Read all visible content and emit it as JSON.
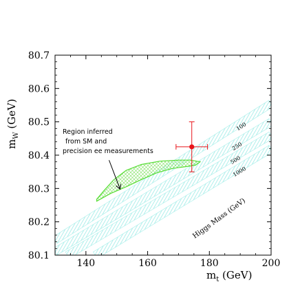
{
  "chart_data": {
    "type": "scatter",
    "title": "",
    "xlabel": "m_t (GeV)",
    "xlabel_main": "m",
    "xlabel_sub": "t",
    "xlabel_unit": " (GeV)",
    "ylabel": "m_W (GeV)",
    "ylabel_main": "m",
    "ylabel_sub": "W",
    "ylabel_unit": " (GeV)",
    "xlim": [
      130,
      200
    ],
    "ylim": [
      80.1,
      80.7
    ],
    "xticks": [
      140,
      160,
      180,
      200
    ],
    "yticks": [
      80.1,
      80.2,
      80.3,
      80.4,
      80.5,
      80.6,
      80.7
    ],
    "xtick_labels": [
      "140",
      "160",
      "180",
      "200"
    ],
    "ytick_labels": [
      "80.1",
      "80.2",
      "80.3",
      "80.4",
      "80.5",
      "80.6",
      "80.7"
    ],
    "grid": false,
    "measurement": {
      "mt": 174.3,
      "mw": 80.425,
      "mt_err": 5.1,
      "mw_err_up": 0.075,
      "mw_err_down": 0.075,
      "color": "#e8141a"
    },
    "region": {
      "label_lines": [
        "Region inferred",
        "from SM and",
        "precision ee measurements"
      ],
      "color": "#55dd33",
      "points": [
        [
          143.5,
          80.262
        ],
        [
          148,
          80.285
        ],
        [
          153,
          80.305
        ],
        [
          158,
          80.327
        ],
        [
          163,
          80.347
        ],
        [
          168,
          80.36
        ],
        [
          172,
          80.365
        ],
        [
          175.5,
          80.37
        ],
        [
          177,
          80.38
        ],
        [
          174,
          80.385
        ],
        [
          170,
          80.385
        ],
        [
          164,
          80.382
        ],
        [
          158,
          80.372
        ],
        [
          153,
          80.354
        ],
        [
          149,
          80.326
        ],
        [
          146,
          80.295
        ],
        [
          143.5,
          80.268
        ]
      ],
      "arrow_from": [
        147.5,
        80.385
      ],
      "arrow_to": [
        151,
        80.3
      ]
    },
    "higgs_bands": {
      "title": "Higgs Mass (GeV)",
      "color": "#b8f2ee",
      "masses": [
        "100",
        "250",
        "500",
        "1000"
      ],
      "bands": [
        {
          "mass": "100",
          "x0": 130,
          "y0": 80.145,
          "x1": 200,
          "y1": 80.555
        },
        {
          "mass": "250",
          "x0": 130,
          "y0": 80.11,
          "x1": 200,
          "y1": 80.5
        },
        {
          "mass": "500",
          "x0": 134,
          "y0": 80.1,
          "x1": 200,
          "y1": 80.46
        },
        {
          "mass": "1000",
          "x0": 143,
          "y0": 80.1,
          "x1": 200,
          "y1": 80.42
        }
      ]
    }
  }
}
